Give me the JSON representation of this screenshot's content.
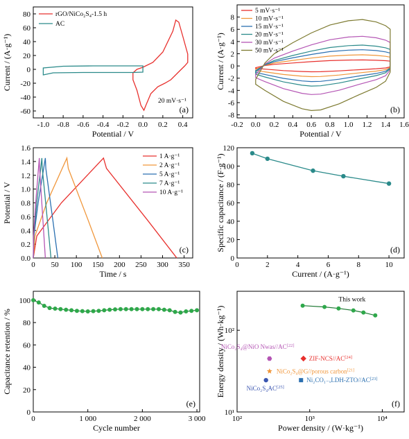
{
  "chart_data": [
    {
      "panel": "(a)",
      "type": "line",
      "xlabel": "Potential / V",
      "ylabel": "Current / (A·g⁻¹)",
      "xlim": [
        -1.1,
        0.5
      ],
      "ylim": [
        -70,
        90
      ],
      "xticks": [
        -1.0,
        -0.8,
        -0.6,
        -0.4,
        -0.2,
        0.0,
        0.2,
        0.4
      ],
      "xtick_labels": [
        "-1.0",
        "-0.8",
        "-0.6",
        "-0.4",
        "-0.2",
        "0.0",
        "0.2",
        "0.4"
      ],
      "yticks": [
        -60,
        -40,
        -20,
        0,
        20,
        40,
        60,
        80
      ],
      "annotation": "20 mV·s⁻¹",
      "series": [
        {
          "name": "rGO/NiCo₂S₄-1.5 h",
          "color": "#e8302d",
          "x": [
            0.0,
            0.1,
            0.2,
            0.3,
            0.33,
            0.36,
            0.4,
            0.45,
            0.45,
            0.42,
            0.35,
            0.28,
            0.22,
            0.15,
            0.08,
            0.03,
            0.01,
            -0.02,
            -0.06,
            -0.1,
            -0.1,
            -0.06,
            0.0
          ],
          "y": [
            3,
            10,
            25,
            55,
            71,
            68,
            48,
            22,
            10,
            5,
            -5,
            -15,
            -20,
            -25,
            -35,
            -52,
            -59,
            -52,
            -30,
            -15,
            -5,
            0,
            3
          ]
        },
        {
          "name": "AC",
          "color": "#2a8a8a",
          "x": [
            -1.0,
            -0.9,
            -0.6,
            -0.3,
            -0.1,
            0.0,
            0.0,
            -0.2,
            -0.5,
            -0.8,
            -1.0,
            -1.0
          ],
          "y": [
            -8,
            -5,
            -4.5,
            -4.5,
            -4.5,
            -4,
            5,
            5,
            5,
            4.5,
            2,
            -8
          ]
        }
      ]
    },
    {
      "panel": "(b)",
      "type": "line",
      "xlabel": "Potential / V",
      "ylabel": "Current / (A·g⁻¹)",
      "xlim": [
        -0.2,
        1.6
      ],
      "ylim": [
        -8.5,
        10
      ],
      "xticks": [
        -0.2,
        0.0,
        0.2,
        0.4,
        0.6,
        0.8,
        1.0,
        1.2,
        1.4,
        1.6
      ],
      "xtick_labels": [
        "-0.2",
        "0.0",
        "0.2",
        "0.4",
        "0.6",
        "0.8",
        "1.0",
        "1.2",
        "1.4",
        "1.6"
      ],
      "yticks": [
        -8,
        -6,
        -4,
        -2,
        0,
        2,
        4,
        6,
        8
      ],
      "series": [
        {
          "name": "5 mV·s⁻¹",
          "color": "#e8302d",
          "scale": 0.13
        },
        {
          "name": "10 mV·s⁻¹",
          "color": "#f0963a",
          "scale": 0.24
        },
        {
          "name": "15 mV·s⁻¹",
          "color": "#2a6fb0",
          "scale": 0.35
        },
        {
          "name": "20 mV·s⁻¹",
          "color": "#2a8a8a",
          "scale": 0.45
        },
        {
          "name": "30 mV·s⁻¹",
          "color": "#b455b4",
          "scale": 0.64
        },
        {
          "name": "50 mV·s⁻¹",
          "color": "#7d7a30",
          "scale": 1.0
        }
      ],
      "shape": {
        "x": [
          0.0,
          0.1,
          0.2,
          0.4,
          0.6,
          0.8,
          1.0,
          1.15,
          1.3,
          1.4,
          1.45,
          1.45,
          1.4,
          1.3,
          1.1,
          0.9,
          0.7,
          0.6,
          0.5,
          0.3,
          0.1,
          0.0,
          0.0
        ],
        "y": [
          -2.2,
          0.5,
          2.0,
          3.8,
          5.4,
          6.7,
          7.4,
          7.6,
          7.2,
          6.6,
          6.0,
          -1.0,
          -2.5,
          -3.5,
          -4.8,
          -6.2,
          -7.2,
          -7.3,
          -7.0,
          -5.8,
          -4.0,
          -3.0,
          -2.2
        ]
      }
    },
    {
      "panel": "(c)",
      "type": "line",
      "xlabel": "Time / s",
      "ylabel": "Potential / V",
      "xlim": [
        0,
        370
      ],
      "ylim": [
        0,
        1.6
      ],
      "xticks": [
        0,
        50,
        100,
        150,
        200,
        250,
        300,
        350
      ],
      "yticks": [
        0.0,
        0.2,
        0.4,
        0.6,
        0.8,
        1.0,
        1.2,
        1.4,
        1.6
      ],
      "ytick_labels": [
        "0.0",
        "0.2",
        "0.4",
        "0.6",
        "0.8",
        "1.0",
        "1.2",
        "1.4",
        "1.6"
      ],
      "series": [
        {
          "name": "1 A·g⁻¹",
          "color": "#e8302d",
          "peak_time": 163,
          "end_time": 333
        },
        {
          "name": "2 A·g⁻¹",
          "color": "#f0963a",
          "peak_time": 78,
          "end_time": 160
        },
        {
          "name": "5 A·g⁻¹",
          "color": "#2a6fb0",
          "peak_time": 28,
          "end_time": 57
        },
        {
          "name": "7 A·g⁻¹",
          "color": "#2a8a8a",
          "peak_time": 20,
          "end_time": 41
        },
        {
          "name": "10 A·g⁻¹",
          "color": "#b455b4",
          "peak_time": 14,
          "end_time": 28
        }
      ]
    },
    {
      "panel": "(d)",
      "type": "line",
      "xlabel": "Current / (A·g⁻¹)",
      "ylabel": "Specific capacitance / (F·g⁻¹)",
      "xlim": [
        0,
        11
      ],
      "ylim": [
        0,
        120
      ],
      "xticks": [
        0,
        2,
        4,
        6,
        8,
        10
      ],
      "yticks": [
        0,
        20,
        40,
        60,
        80,
        100,
        120
      ],
      "color": "#2a8a8a",
      "x": [
        1,
        2,
        5,
        7,
        10
      ],
      "y": [
        114,
        108,
        95,
        89,
        81
      ]
    },
    {
      "panel": "(e)",
      "type": "line",
      "xlabel": "Cycle number",
      "ylabel": "Capacitance retention / %",
      "xlim": [
        0,
        3050
      ],
      "ylim": [
        0,
        108
      ],
      "xticks": [
        0,
        1000,
        2000,
        3000
      ],
      "xtick_labels": [
        "0",
        "1 000",
        "2 000",
        "3 000"
      ],
      "yticks": [
        0,
        20,
        40,
        60,
        80,
        100
      ],
      "color": "#2ea84a",
      "x": [
        0,
        100,
        200,
        300,
        400,
        500,
        600,
        700,
        800,
        900,
        1000,
        1100,
        1200,
        1300,
        1400,
        1500,
        1600,
        1700,
        1800,
        1900,
        2000,
        2100,
        2200,
        2300,
        2400,
        2500,
        2600,
        2700,
        2800,
        2900,
        3000
      ],
      "y": [
        100,
        98,
        95,
        93,
        92.5,
        92,
        91.5,
        91,
        90.5,
        90.2,
        90,
        90.2,
        90.5,
        91,
        91.5,
        91.8,
        92,
        92,
        92,
        92,
        92,
        92,
        92,
        92,
        91.5,
        91,
        89.5,
        89,
        90,
        90.5,
        91
      ]
    },
    {
      "panel": "(f)",
      "type": "scatter",
      "xlabel": "Power density / (W·kg⁻¹)",
      "ylabel": "Energy density / (Wh·kg⁻¹)",
      "xscale": "log",
      "yscale": "log",
      "xlim": [
        100,
        20000
      ],
      "ylim": [
        10,
        300
      ],
      "xticks": [
        100,
        1000,
        10000
      ],
      "xtick_labels": [
        "10²",
        "10³",
        "10⁴"
      ],
      "yticks": [
        10,
        100
      ],
      "ytick_labels": [
        "10¹",
        "10²"
      ],
      "this_work": {
        "label": "This work",
        "color": "#2ea84a",
        "x": [
          800,
          1600,
          2500,
          4000,
          5500,
          8000
        ],
        "y": [
          200,
          193,
          185,
          175,
          165,
          152
        ]
      },
      "references": [
        {
          "label": "NiCo₂S₄@NiO Nwas//AC",
          "ref": "[22]",
          "x": 280,
          "y": 45,
          "color": "#b455b4",
          "marker": "hexagon"
        },
        {
          "label": "ZIF-NCS//AC",
          "ref": "[24]",
          "x": 820,
          "y": 45,
          "color": "#e8302d",
          "marker": "diamond"
        },
        {
          "label": "NiCo₂S₄@G//porous carbon",
          "ref": "[21]",
          "x": 280,
          "y": 31.5,
          "color": "#f0963a",
          "marker": "star"
        },
        {
          "label": "NiCo₂S₄AC",
          "ref": "[25]",
          "x": 250,
          "y": 24.5,
          "color": "#3a55b0",
          "marker": "circle"
        },
        {
          "label": "Ni₂CO₁₋ₓLDH-ZTO//AC",
          "ref": "[23]",
          "x": 760,
          "y": 24.5,
          "color": "#2a6fb0",
          "marker": "square"
        }
      ]
    }
  ],
  "panel_labels": [
    "(a)",
    "(b)",
    "(c)",
    "(d)",
    "(e)",
    "(f)"
  ]
}
